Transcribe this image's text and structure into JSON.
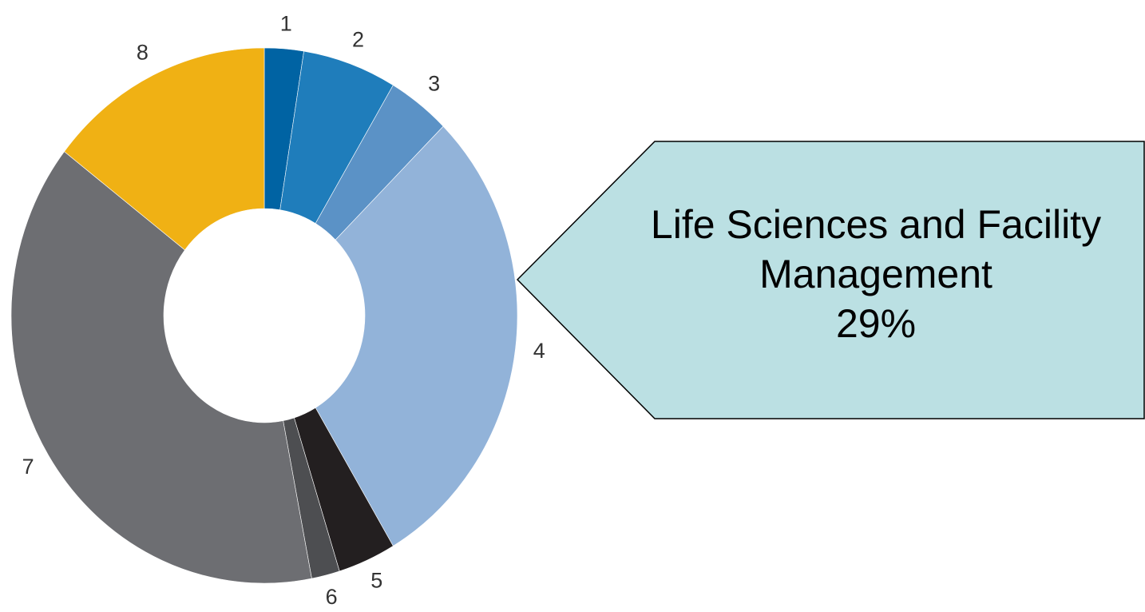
{
  "chart_data": {
    "type": "donut",
    "categories": [
      "1",
      "2",
      "3",
      "4",
      "5",
      "6",
      "7",
      "8"
    ],
    "values": [
      2.5,
      6,
      4,
      29,
      3.7,
      1.8,
      38.5,
      14.5
    ],
    "value_labels": [
      null,
      null,
      null,
      "29%",
      null,
      null,
      null,
      null
    ],
    "colors": [
      "#0063a3",
      "#1f7dbb",
      "#5b92c6",
      "#92b3d9",
      "#231f20",
      "#4d4e51",
      "#6d6e72",
      "#f0b114"
    ],
    "annotation": "Life Sciences and Facility Management"
  }
}
